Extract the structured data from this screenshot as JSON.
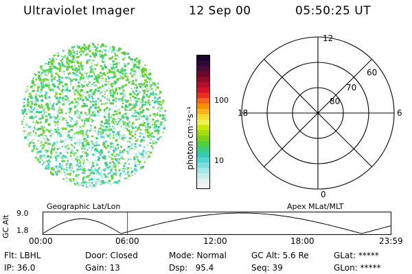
{
  "header": {
    "instrument": "Ultraviolet Imager",
    "date": "12 Sep 00",
    "time": "05:50:25 UT"
  },
  "colorbar": {
    "label": "photon cm⁻²s⁻¹",
    "tick_100": "100",
    "tick_10": "10",
    "colors": [
      "#f2f2f2",
      "#e6f2f2",
      "#c8ecec",
      "#a6e6e6",
      "#7fdede",
      "#4fd6d2",
      "#33ccb0",
      "#3ccc7a",
      "#52d23a",
      "#7ad21a",
      "#a0dc10",
      "#c8e60a",
      "#ecf050",
      "#f6dc30",
      "#f8b418",
      "#f59000",
      "#f06818",
      "#e83020",
      "#d41428",
      "#b0102a",
      "#8c0c2a",
      "#6a0a30",
      "#4a0a38",
      "#2c0838",
      "#14042a"
    ]
  },
  "polar_plot": {
    "labels": {
      "mlt_12": "12",
      "mlt_18": "18",
      "mlt_6": "6",
      "mlt_0": "0",
      "lat_60": "60",
      "lat_70": "70",
      "lat_80": "80"
    }
  },
  "altitude_plot": {
    "ylabel": "GC Alt",
    "yticks": [
      "9.0",
      "1.8"
    ],
    "left_title": "Geographic Lat/Lon",
    "right_title": "Apex MLat/MLT",
    "xticks": [
      "00:00",
      "06:00",
      "12:00",
      "18:00",
      "23:59"
    ],
    "current_time_fraction": 0.2433
  },
  "footer": {
    "row1": {
      "filter": "Flt: LBHL",
      "door": "Door: Closed",
      "mode": "Mode: Normal",
      "gc_alt": "GC Alt: 5.6 Re",
      "glat": "GLat: *****"
    },
    "row2": {
      "ip": "IP: 36.0",
      "gain": "Gain: 13",
      "dsp": "Dsp:   95.4",
      "seq": "Seq: 39",
      "glon": "GLon: *****"
    }
  }
}
